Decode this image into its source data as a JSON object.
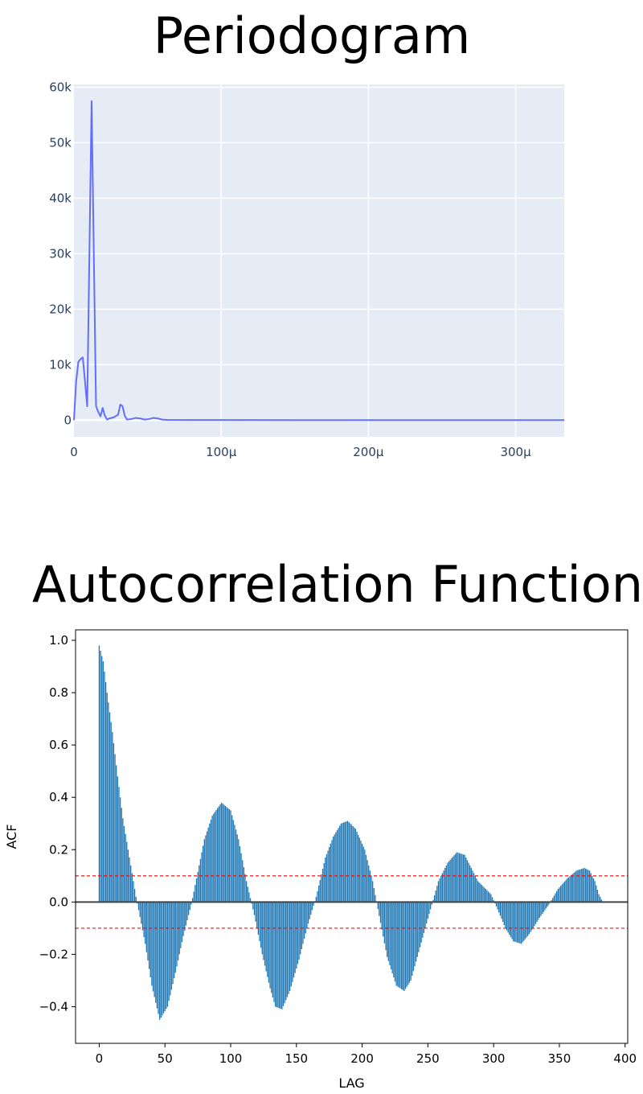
{
  "chart_data": [
    {
      "type": "line",
      "title": "Periodogram",
      "xlabel": "",
      "ylabel": "",
      "xlim": [
        0,
        0.000333
      ],
      "ylim": [
        -3000,
        60500
      ],
      "x_ticks": [
        0,
        0.0001,
        0.0002,
        0.0003
      ],
      "x_tick_labels": [
        "0",
        "100μ",
        "200μ",
        "300μ"
      ],
      "y_ticks": [
        0,
        10000,
        20000,
        30000,
        40000,
        50000,
        60000
      ],
      "y_tick_labels": [
        "0",
        "10k",
        "20k",
        "30k",
        "40k",
        "50k",
        "60k"
      ],
      "grid": true,
      "background": "#e5ecf6",
      "line_color": "#636efa",
      "series": [
        {
          "x": [
            0,
            1.5e-06,
            3e-06,
            4.5e-06,
            6e-06,
            7.5e-06,
            9e-06,
            1.05e-05,
            1.2e-05,
            1.35e-05,
            1.5e-05,
            1.65e-05,
            1.8e-05,
            1.95e-05,
            2.1e-05,
            2.25e-05,
            2.4e-05,
            2.7e-05,
            3e-05,
            3.15e-05,
            3.3e-05,
            3.45e-05,
            3.6e-05,
            3.9e-05,
            4.2e-05,
            4.5e-05,
            4.8e-05,
            5.1e-05,
            5.4e-05,
            5.7e-05,
            6e-05,
            6.3e-05,
            8e-05,
            0.0001,
            0.00015,
            0.0002,
            0.00025,
            0.0003,
            0.000333
          ],
          "y": [
            0,
            7000,
            10500,
            11000,
            11300,
            7000,
            2500,
            30000,
            57500,
            30000,
            2500,
            1500,
            700,
            2200,
            800,
            100,
            300,
            500,
            1000,
            2800,
            2500,
            800,
            100,
            200,
            400,
            300,
            100,
            200,
            400,
            300,
            100,
            50,
            30,
            20,
            10,
            10,
            10,
            10,
            10
          ]
        }
      ]
    },
    {
      "type": "bar",
      "title": "Autocorrelation Function",
      "xlabel": "LAG",
      "ylabel": "ACF",
      "xlim": [
        -18,
        402
      ],
      "ylim": [
        -0.54,
        1.04
      ],
      "x_ticks": [
        0,
        50,
        100,
        150,
        200,
        250,
        300,
        350,
        400
      ],
      "x_tick_labels": [
        "0",
        "50",
        "100",
        "150",
        "200",
        "250",
        "300",
        "350",
        "400"
      ],
      "y_ticks": [
        -0.4,
        -0.2,
        0.0,
        0.2,
        0.4,
        0.6,
        0.8,
        1.0
      ],
      "y_tick_labels": [
        "−0.4",
        "−0.2",
        "0.0",
        "0.2",
        "0.4",
        "0.6",
        "0.8",
        "1.0"
      ],
      "bar_color": "#1f77b4",
      "confidence_bounds": [
        0.1,
        -0.1
      ],
      "confidence_color": "#ff0000",
      "zero_line_color": "#444444",
      "max_lag": 383,
      "control_points": {
        "lag": [
          0,
          3,
          6,
          10,
          14,
          18,
          23,
          28,
          35,
          40,
          46,
          52,
          58,
          64,
          70,
          76,
          80,
          86,
          93,
          100,
          106,
          112,
          118,
          124,
          130,
          134,
          139,
          145,
          152,
          158,
          165,
          172,
          178,
          184,
          189,
          195,
          202,
          208,
          214,
          219,
          226,
          232,
          237,
          242,
          248,
          253,
          258,
          265,
          272,
          278,
          283,
          288,
          292,
          298,
          304,
          309,
          315,
          321,
          326,
          330,
          335,
          342,
          349,
          356,
          363,
          369,
          373,
          377,
          380,
          383
        ],
        "acf": [
          0.98,
          0.92,
          0.8,
          0.65,
          0.48,
          0.32,
          0.17,
          0.02,
          -0.16,
          -0.32,
          -0.45,
          -0.4,
          -0.27,
          -0.13,
          -0.01,
          0.14,
          0.24,
          0.33,
          0.38,
          0.35,
          0.24,
          0.08,
          -0.05,
          -0.2,
          -0.33,
          -0.4,
          -0.41,
          -0.34,
          -0.22,
          -0.1,
          0.02,
          0.17,
          0.25,
          0.3,
          0.31,
          0.28,
          0.2,
          0.08,
          -0.08,
          -0.21,
          -0.32,
          -0.34,
          -0.3,
          -0.21,
          -0.1,
          -0.01,
          0.08,
          0.15,
          0.19,
          0.18,
          0.13,
          0.08,
          0.06,
          0.03,
          -0.04,
          -0.1,
          -0.15,
          -0.16,
          -0.13,
          -0.1,
          -0.06,
          -0.01,
          0.05,
          0.09,
          0.12,
          0.13,
          0.12,
          0.08,
          0.03,
          0.0
        ]
      }
    }
  ]
}
